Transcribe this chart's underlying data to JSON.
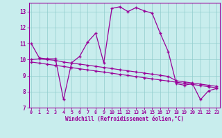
{
  "bg_color": "#c8eded",
  "line_color": "#990099",
  "xlim_min": -0.3,
  "xlim_max": 23.4,
  "ylim_min": 7.0,
  "ylim_max": 13.55,
  "xticks": [
    0,
    1,
    2,
    3,
    4,
    5,
    6,
    7,
    8,
    9,
    10,
    11,
    12,
    13,
    14,
    15,
    16,
    17,
    18,
    19,
    20,
    21,
    22,
    23
  ],
  "yticks": [
    7,
    8,
    9,
    10,
    11,
    12,
    13
  ],
  "xlabel": "Windchill (Refroidissement éolien,°C)",
  "temp_y": [
    11.0,
    10.1,
    10.05,
    10.05,
    7.5,
    9.8,
    10.2,
    11.1,
    11.65,
    9.8,
    13.2,
    13.3,
    13.0,
    13.25,
    13.05,
    12.9,
    11.65,
    10.5,
    8.5,
    8.4,
    8.5,
    7.5,
    8.05,
    8.2
  ],
  "wc1_y": [
    10.0,
    10.05,
    10.0,
    9.95,
    9.85,
    9.78,
    9.72,
    9.65,
    9.58,
    9.51,
    9.44,
    9.37,
    9.3,
    9.23,
    9.16,
    9.09,
    9.02,
    8.95,
    8.68,
    8.61,
    8.54,
    8.47,
    8.4,
    8.33
  ],
  "wc2_y": [
    9.85,
    9.78,
    9.71,
    9.64,
    9.57,
    9.5,
    9.43,
    9.36,
    9.29,
    9.22,
    9.15,
    9.08,
    9.01,
    8.94,
    8.87,
    8.8,
    8.73,
    8.66,
    8.59,
    8.52,
    8.45,
    8.38,
    8.31,
    8.24
  ]
}
